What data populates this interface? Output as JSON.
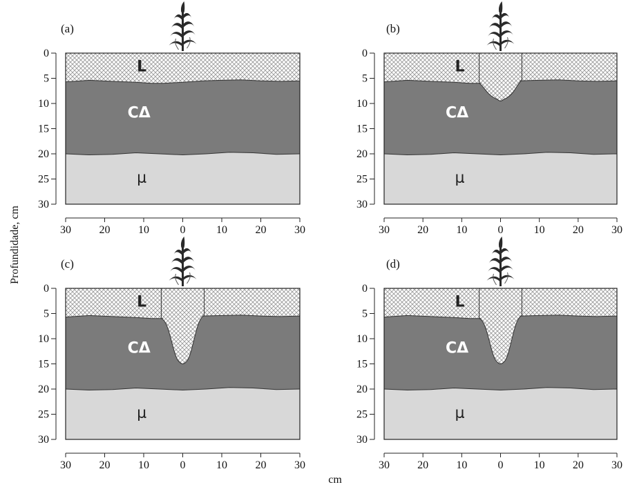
{
  "y_axis_title": "Profundidade, cm",
  "x_axis_title": "cm",
  "depth_ticks": [
    "0",
    "5",
    "10",
    "15",
    "20",
    "25",
    "30"
  ],
  "distance_ticks": [
    "30",
    "20",
    "10",
    "0",
    "10",
    "20",
    "30"
  ],
  "colors": {
    "top_layer_pattern": "#9a9a9a",
    "middle_layer": "#7b7b7b",
    "bottom_layer": "#d8d8d8",
    "middle_label": "#ffffff",
    "label_dark": "#222222"
  },
  "panels": [
    {
      "label": "(a)",
      "labels": {
        "top": "L",
        "middle": "CΔ",
        "bottom": "μ"
      },
      "furrow_depth_cm": 0
    },
    {
      "label": "(b)",
      "labels": {
        "top": "L",
        "middle": "CΔ",
        "bottom": "μ"
      },
      "furrow_depth_cm": 9.5
    },
    {
      "label": "(c)",
      "labels": {
        "top": "L",
        "middle": "CΔ",
        "bottom": "μ"
      },
      "furrow_depth_cm": 15
    },
    {
      "label": "(d)",
      "labels": {
        "top": "L",
        "middle": "CΔ",
        "bottom": "μ"
      },
      "furrow_depth_cm": 15
    }
  ]
}
